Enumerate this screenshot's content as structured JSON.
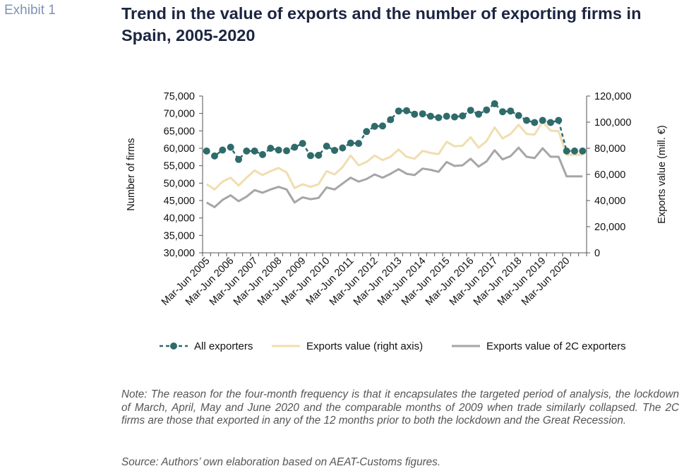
{
  "exhibit_label": "Exhibit 1",
  "title": "Trend in the value of exports and the number of exporting firms in Spain, 2005-2020",
  "note": "Note: The reason for the four-month frequency is that it encapsulates the targeted period of analysis, the lockdown of March, April, May and June 2020 and the comparable months of 2009 when trade similarly collapsed. The 2C firms are those that exported in any of the 12 months prior to both the lockdown and the Great Recession.",
  "source": "Source: Authors’ own elaboration based on AEAT-Customs figures.",
  "colors": {
    "all_exporters": "#2f6b6b",
    "exports_value": "#f0deb0",
    "exports_2c": "#a6a6a6",
    "axis": "#555555"
  },
  "chart_data": {
    "type": "line",
    "xlabel": "",
    "ylabel_left": "Number of firms",
    "ylabel_right": "Exports value (mill. €)",
    "ylim_left": [
      30000,
      75000
    ],
    "ylim_right": [
      0,
      120000
    ],
    "yticks_left": [
      "30,000",
      "35,000",
      "40,000",
      "45,000",
      "50,000",
      "55,000",
      "60,000",
      "65,000",
      "70,000",
      "75,000"
    ],
    "yticks_right": [
      "0",
      "20,000",
      "40,000",
      "60,000",
      "80,000",
      "100,000",
      "120,000"
    ],
    "x_tick_labels": [
      "Mar-Jun 2005",
      "Mar-Jun 2006",
      "Mar-Jun 2007",
      "Mar-Jun 2008",
      "Mar-Jun 2009",
      "Mar-Jun 2010",
      "Mar-Jun 2011",
      "Mar-Jun 2012",
      "Mar-Jun 2013",
      "Mar-Jun 2014",
      "Mar-Jun 2015",
      "Mar-Jun 2016",
      "Mar-Jun 2017",
      "Mar-Jun 2018",
      "Mar-Jun 2019",
      "Mar-Jun 2020"
    ],
    "n_points": 48,
    "legend_position": "bottom",
    "series": [
      {
        "name": "All exporters",
        "axis": "left",
        "style": "dashed-markers",
        "values": [
          59200,
          57800,
          59500,
          60300,
          56800,
          59200,
          59200,
          58200,
          60000,
          59500,
          59300,
          60300,
          61400,
          57900,
          58000,
          60600,
          59400,
          60100,
          61500,
          61400,
          64800,
          66300,
          66400,
          68200,
          70700,
          70800,
          69800,
          69900,
          69200,
          68800,
          69200,
          69000,
          69300,
          70900,
          69800,
          71000,
          72800,
          70500,
          70700,
          69400,
          68000,
          67400,
          68000,
          67400,
          68000,
          59200,
          59200,
          59200
        ]
      },
      {
        "name": "Exports value (right axis)",
        "axis": "right",
        "style": "solid",
        "values": [
          52500,
          48500,
          54500,
          57500,
          51500,
          57500,
          63000,
          59500,
          62500,
          65000,
          61500,
          49500,
          52500,
          50500,
          52500,
          62500,
          60000,
          65500,
          74500,
          67000,
          69500,
          74500,
          71000,
          73500,
          79000,
          73500,
          72000,
          78000,
          76500,
          75500,
          85000,
          81500,
          82000,
          88500,
          80500,
          85500,
          96000,
          87500,
          91000,
          98000,
          91000,
          90500,
          100500,
          93500,
          93000,
          75000,
          75000,
          75000
        ]
      },
      {
        "name": "Exports value of 2C exporters",
        "axis": "right",
        "style": "solid",
        "values": [
          38500,
          35000,
          40500,
          44000,
          39500,
          43000,
          48000,
          46000,
          48500,
          50500,
          48500,
          38500,
          42500,
          41000,
          42000,
          50000,
          48500,
          53000,
          57500,
          54500,
          56500,
          60000,
          57500,
          60500,
          64000,
          60500,
          59500,
          64500,
          63500,
          62000,
          69500,
          66500,
          67000,
          72000,
          66000,
          70000,
          78500,
          71500,
          74000,
          80500,
          73500,
          72500,
          80000,
          73500,
          73500,
          58500,
          58500,
          58500
        ]
      }
    ]
  }
}
